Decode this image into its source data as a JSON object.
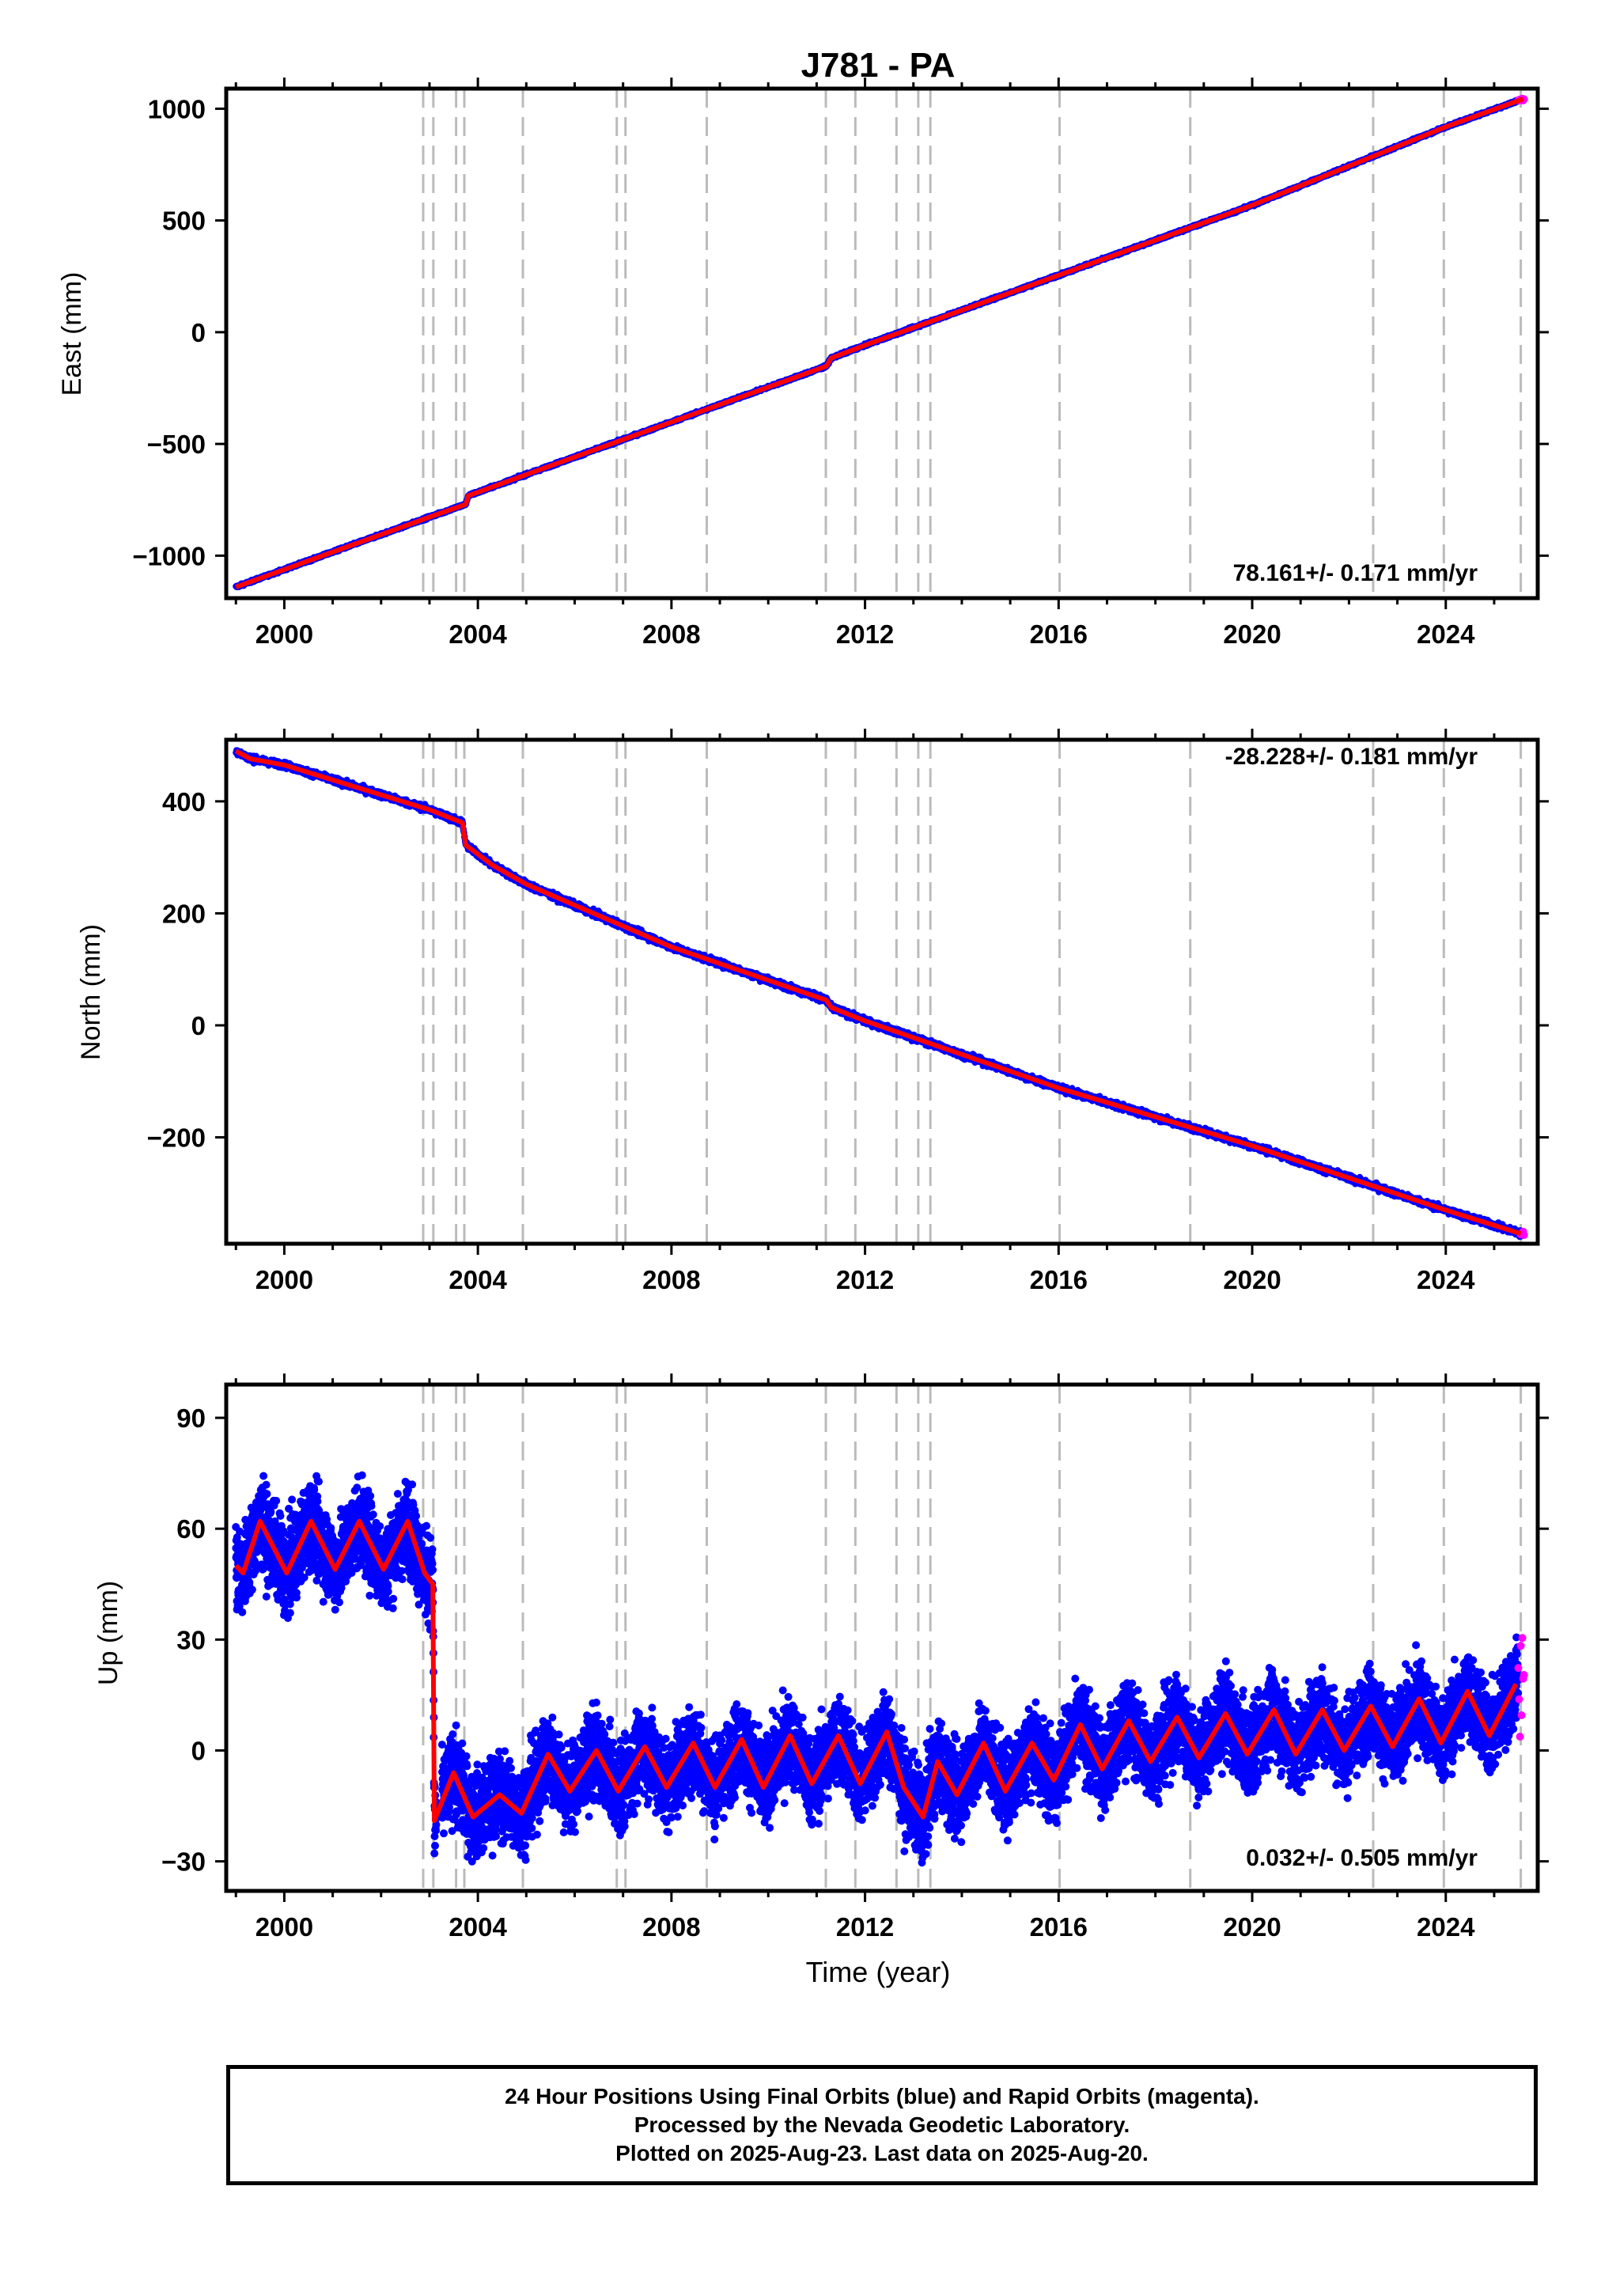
{
  "title": "J781 - PA",
  "colors": {
    "final_orbits": "#0000ff",
    "rapid_orbits": "#ff00ff",
    "model_fit": "#ff0000",
    "event_lines": "#bbbbbb"
  },
  "xlabel": "Time (year)",
  "event_lines_years": [
    2002.87,
    2003.08,
    2003.55,
    2003.72,
    2004.93,
    2006.87,
    2007.05,
    2008.73,
    2011.19,
    2011.8,
    2012.65,
    2013.1,
    2013.35,
    2016.02,
    2018.72,
    2022.5,
    2023.96,
    2025.55
  ],
  "caption": {
    "line1": "24 Hour Positions Using Final Orbits (blue) and Rapid Orbits (magenta).",
    "line2": "Processed by the Nevada Geodetic Laboratory.",
    "line3": "Plotted on 2025-Aug-23. Last data on 2025-Aug-20."
  },
  "chart_data": [
    {
      "type": "scatter",
      "ylabel": "East (mm)",
      "rate_label": "78.161+/- 0.171 mm/yr",
      "xlim": [
        1998.8,
        2025.9
      ],
      "ylim": [
        -1190,
        1090
      ],
      "xticks": [
        2000,
        2004,
        2008,
        2012,
        2016,
        2020,
        2024
      ],
      "yticks": [
        1000,
        500,
        0,
        -500,
        -1000
      ],
      "series": [
        {
          "values": [
            [
              1999.0,
              -1140
            ],
            [
              2003.0,
              -827
            ],
            [
              2003.75,
              -770
            ],
            [
              2003.8,
              -732
            ],
            [
              2005.0,
              -637
            ],
            [
              2008.0,
              -402
            ],
            [
              2011.2,
              -152
            ],
            [
              2011.3,
              -116
            ],
            [
              2012.0,
              -58
            ],
            [
              2016.0,
              255
            ],
            [
              2020.0,
              568
            ],
            [
              2024.0,
              919
            ],
            [
              2025.6,
              1044
            ]
          ]
        }
      ]
    },
    {
      "type": "scatter",
      "ylabel": "North (mm)",
      "rate_label": "-28.228+/- 0.181 mm/yr",
      "xlim": [
        1998.8,
        2025.9
      ],
      "ylim": [
        -390,
        510
      ],
      "xticks": [
        2000,
        2004,
        2008,
        2012,
        2016,
        2020,
        2024
      ],
      "yticks": [
        400,
        200,
        0,
        -200
      ],
      "series": [
        {
          "values": [
            [
              1999.0,
              490
            ],
            [
              1999.3,
              476
            ],
            [
              2000.0,
              465
            ],
            [
              2003.0,
              385
            ],
            [
              2003.68,
              362
            ],
            [
              2003.75,
              322
            ],
            [
              2004.3,
              286
            ],
            [
              2005.0,
              252
            ],
            [
              2008.0,
              140
            ],
            [
              2011.2,
              45
            ],
            [
              2011.3,
              32
            ],
            [
              2012.0,
              8
            ],
            [
              2016.0,
              -112
            ],
            [
              2020.0,
              -215
            ],
            [
              2024.0,
              -330
            ],
            [
              2025.55,
              -372
            ]
          ]
        }
      ]
    },
    {
      "type": "scatter",
      "ylabel": "Up (mm)",
      "rate_label": "0.032+/- 0.505 mm/yr",
      "xlim": [
        1998.8,
        2025.9
      ],
      "ylim": [
        -38,
        99
      ],
      "xticks": [
        2000,
        2004,
        2008,
        2012,
        2016,
        2020,
        2024
      ],
      "yticks": [
        90,
        60,
        30,
        0,
        -30
      ],
      "series": [
        {
          "values": [
            [
              1999.0,
              50
            ],
            [
              1999.15,
              48
            ],
            [
              1999.5,
              62
            ],
            [
              2000.05,
              48
            ],
            [
              2000.55,
              62
            ],
            [
              2001.05,
              49
            ],
            [
              2001.55,
              62
            ],
            [
              2002.05,
              49
            ],
            [
              2002.55,
              62
            ],
            [
              2002.9,
              48
            ],
            [
              2003.07,
              45
            ],
            [
              2003.1,
              -19
            ],
            [
              2003.5,
              -6
            ],
            [
              2003.9,
              -18
            ],
            [
              2004.45,
              -12
            ],
            [
              2004.9,
              -17
            ],
            [
              2005.45,
              -1
            ],
            [
              2005.9,
              -11
            ],
            [
              2006.45,
              0
            ],
            [
              2006.9,
              -11
            ],
            [
              2007.45,
              1
            ],
            [
              2007.9,
              -10
            ],
            [
              2008.45,
              2
            ],
            [
              2008.9,
              -10
            ],
            [
              2009.45,
              3
            ],
            [
              2009.9,
              -10
            ],
            [
              2010.45,
              4
            ],
            [
              2010.9,
              -9
            ],
            [
              2011.45,
              4
            ],
            [
              2011.9,
              -9
            ],
            [
              2012.45,
              5
            ],
            [
              2012.8,
              -10
            ],
            [
              2013.2,
              -18
            ],
            [
              2013.5,
              -3
            ],
            [
              2013.9,
              -12
            ],
            [
              2014.45,
              2
            ],
            [
              2014.9,
              -11
            ],
            [
              2015.45,
              2
            ],
            [
              2015.9,
              -8
            ],
            [
              2016.45,
              7
            ],
            [
              2016.9,
              -5
            ],
            [
              2017.45,
              8
            ],
            [
              2017.9,
              -3
            ],
            [
              2018.45,
              9
            ],
            [
              2018.9,
              -2
            ],
            [
              2019.45,
              10
            ],
            [
              2019.9,
              -1
            ],
            [
              2020.45,
              11
            ],
            [
              2020.9,
              -1
            ],
            [
              2021.45,
              11
            ],
            [
              2021.9,
              0
            ],
            [
              2022.45,
              12
            ],
            [
              2022.9,
              1
            ],
            [
              2023.45,
              14
            ],
            [
              2023.9,
              2
            ],
            [
              2024.45,
              16
            ],
            [
              2024.9,
              4
            ],
            [
              2025.45,
              18
            ]
          ]
        }
      ]
    }
  ]
}
